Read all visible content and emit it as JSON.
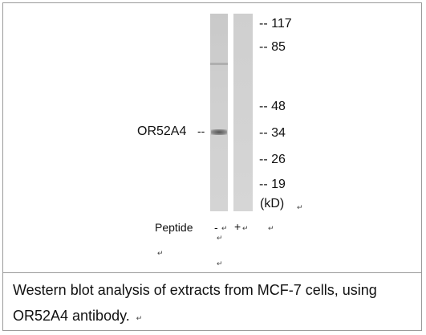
{
  "blot": {
    "target_label": "OR52A4",
    "target_dash": "--",
    "markers": [
      {
        "label": "-- 117"
      },
      {
        "label": "-- 85"
      },
      {
        "label": "-- 48"
      },
      {
        "label": "-- 34"
      },
      {
        "label": "-- 26"
      },
      {
        "label": "-- 19"
      }
    ],
    "unit": "(kD)",
    "peptide_label": "Peptide",
    "lane_signs": [
      "-",
      "+"
    ],
    "return_mark": "↵"
  },
  "caption": {
    "line1": "Western blot analysis of extracts from MCF-7 cells, using",
    "line2": "OR52A4 antibody."
  }
}
